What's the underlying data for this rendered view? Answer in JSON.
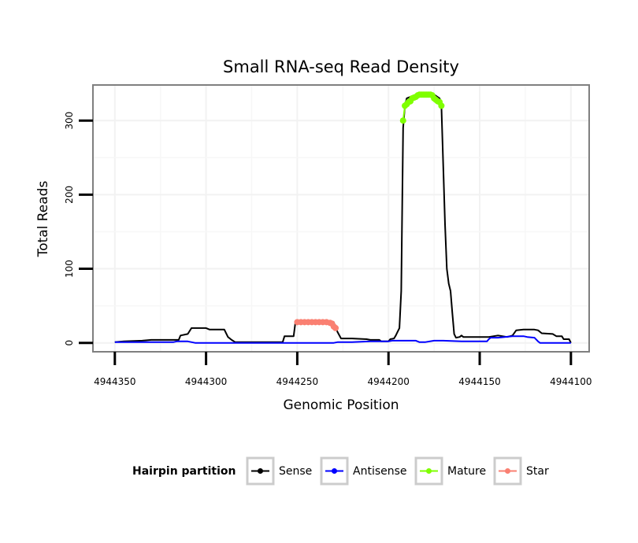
{
  "chart_data": {
    "type": "line",
    "title": "Small RNA-seq Read Density",
    "xlabel": "Genomic Position",
    "ylabel": "Total Reads",
    "xlim": [
      4944362,
      4944090
    ],
    "x_reversed": true,
    "ylim": [
      -12,
      348
    ],
    "x_ticks": [
      4944350,
      4944300,
      4944250,
      4944200,
      4944150,
      4944100
    ],
    "x_tick_labels": [
      "4944350",
      "4944300",
      "4944250",
      "4944200",
      "4944150",
      "4944100"
    ],
    "y_ticks": [
      0,
      100,
      200,
      300
    ],
    "y_tick_labels": [
      "0",
      "100",
      "200",
      "300"
    ],
    "grid": true,
    "legend": {
      "title": "Hairpin partition",
      "placement": "bottom",
      "entries": [
        {
          "label": "Sense",
          "color": "#000000"
        },
        {
          "label": "Antisense",
          "color": "#0000ff"
        },
        {
          "label": "Mature",
          "color": "#7fff00"
        },
        {
          "label": "Star",
          "color": "#fa8072"
        }
      ]
    },
    "series": [
      {
        "name": "Sense",
        "color": "#000000",
        "points": [
          [
            4944350,
            1
          ],
          [
            4944345,
            2
          ],
          [
            4944335,
            3
          ],
          [
            4944330,
            4
          ],
          [
            4944315,
            4
          ],
          [
            4944314,
            10
          ],
          [
            4944310,
            12
          ],
          [
            4944308,
            20
          ],
          [
            4944300,
            20
          ],
          [
            4944298,
            18
          ],
          [
            4944290,
            18
          ],
          [
            4944288,
            8
          ],
          [
            4944286,
            4
          ],
          [
            4944284,
            1
          ],
          [
            4944270,
            1
          ],
          [
            4944258,
            1
          ],
          [
            4944257,
            9
          ],
          [
            4944252,
            9
          ],
          [
            4944251,
            28
          ],
          [
            4944230,
            28
          ],
          [
            4944228,
            15
          ],
          [
            4944226,
            6
          ],
          [
            4944220,
            6
          ],
          [
            4944212,
            5
          ],
          [
            4944210,
            4
          ],
          [
            4944205,
            4
          ],
          [
            4944204,
            2
          ],
          [
            4944200,
            2
          ],
          [
            4944199,
            5
          ],
          [
            4944197,
            6
          ],
          [
            4944196,
            10
          ],
          [
            4944195,
            15
          ],
          [
            4944194,
            20
          ],
          [
            4944193,
            70
          ],
          [
            4944192,
            290
          ],
          [
            4944191,
            320
          ],
          [
            4944190,
            330
          ],
          [
            4944185,
            335
          ],
          [
            4944175,
            335
          ],
          [
            4944172,
            330
          ],
          [
            4944171,
            320
          ],
          [
            4944170,
            240
          ],
          [
            4944169,
            160
          ],
          [
            4944168,
            100
          ],
          [
            4944167,
            80
          ],
          [
            4944166,
            70
          ],
          [
            4944165,
            40
          ],
          [
            4944164,
            12
          ],
          [
            4944163,
            7
          ],
          [
            4944161,
            8
          ],
          [
            4944160,
            10
          ],
          [
            4944159,
            8
          ],
          [
            4944155,
            8
          ],
          [
            4944145,
            8
          ],
          [
            4944140,
            10
          ],
          [
            4944135,
            8
          ],
          [
            4944132,
            10
          ],
          [
            4944130,
            17
          ],
          [
            4944126,
            18
          ],
          [
            4944120,
            18
          ],
          [
            4944118,
            17
          ],
          [
            4944116,
            13
          ],
          [
            4944110,
            12
          ],
          [
            4944108,
            9
          ],
          [
            4944105,
            9
          ],
          [
            4944104,
            5
          ],
          [
            4944101,
            5
          ],
          [
            4944100,
            0
          ]
        ]
      },
      {
        "name": "Antisense",
        "color": "#0000ff",
        "points": [
          [
            4944350,
            1
          ],
          [
            4944330,
            1
          ],
          [
            4944318,
            1
          ],
          [
            4944316,
            2
          ],
          [
            4944310,
            2
          ],
          [
            4944306,
            0
          ],
          [
            4944270,
            0
          ],
          [
            4944235,
            0
          ],
          [
            4944230,
            0
          ],
          [
            4944228,
            1
          ],
          [
            4944220,
            1
          ],
          [
            4944210,
            2
          ],
          [
            4944200,
            2
          ],
          [
            4944198,
            3
          ],
          [
            4944190,
            3
          ],
          [
            4944185,
            3
          ],
          [
            4944183,
            1
          ],
          [
            4944180,
            1
          ],
          [
            4944175,
            3
          ],
          [
            4944170,
            3
          ],
          [
            4944160,
            2
          ],
          [
            4944150,
            2
          ],
          [
            4944146,
            2
          ],
          [
            4944145,
            5
          ],
          [
            4944144,
            7
          ],
          [
            4944140,
            7
          ],
          [
            4944132,
            9
          ],
          [
            4944126,
            9
          ],
          [
            4944124,
            8
          ],
          [
            4944120,
            7
          ],
          [
            4944118,
            2
          ],
          [
            4944117,
            0
          ],
          [
            4944100,
            0
          ]
        ]
      },
      {
        "name": "Mature",
        "color": "#7fff00",
        "points": [
          [
            4944192,
            300
          ],
          [
            4944191,
            320
          ],
          [
            4944190,
            322
          ],
          [
            4944189,
            325
          ],
          [
            4944188,
            326
          ],
          [
            4944187,
            330
          ],
          [
            4944186,
            331
          ],
          [
            4944185,
            332
          ],
          [
            4944184,
            334
          ],
          [
            4944183,
            335
          ],
          [
            4944182,
            335
          ],
          [
            4944181,
            335
          ],
          [
            4944180,
            335
          ],
          [
            4944179,
            335
          ],
          [
            4944178,
            335
          ],
          [
            4944177,
            335
          ],
          [
            4944176,
            334
          ],
          [
            4944175,
            330
          ],
          [
            4944174,
            328
          ],
          [
            4944173,
            326
          ],
          [
            4944172,
            325
          ],
          [
            4944171,
            320
          ]
        ]
      },
      {
        "name": "Star",
        "color": "#fa8072",
        "points": [
          [
            4944250,
            28
          ],
          [
            4944248,
            28
          ],
          [
            4944246,
            28
          ],
          [
            4944244,
            28
          ],
          [
            4944242,
            28
          ],
          [
            4944240,
            28
          ],
          [
            4944238,
            28
          ],
          [
            4944236,
            28
          ],
          [
            4944234,
            28
          ],
          [
            4944232,
            27
          ],
          [
            4944231,
            26
          ],
          [
            4944230,
            22
          ],
          [
            4944229,
            20
          ]
        ]
      }
    ]
  }
}
